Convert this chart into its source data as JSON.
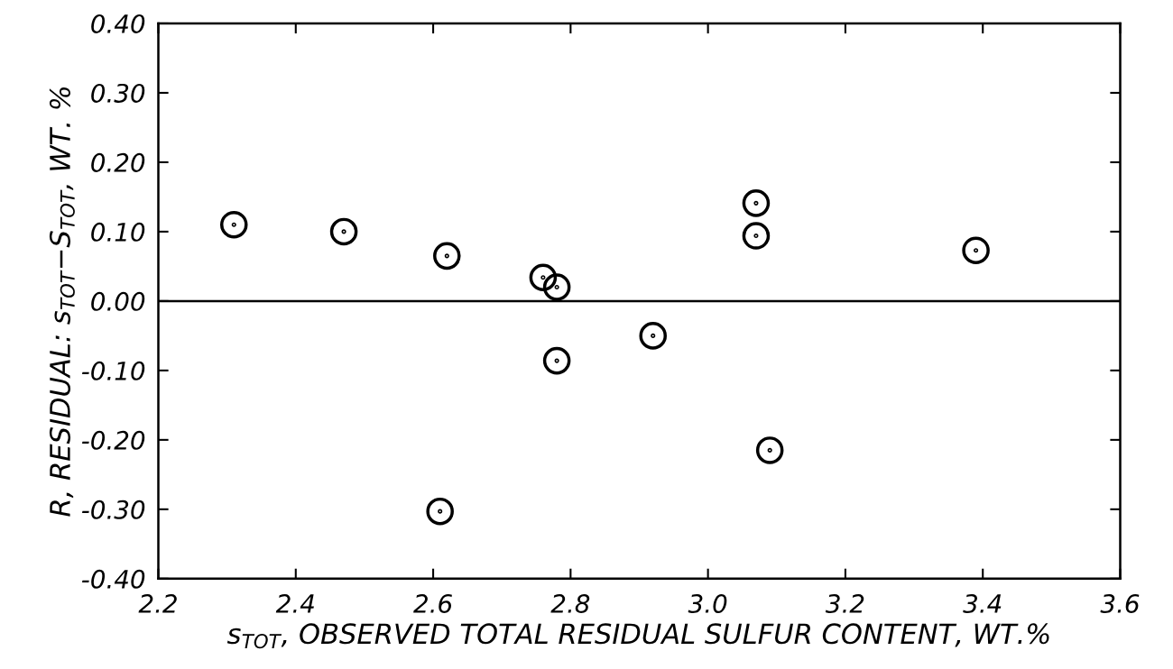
{
  "chart_data": {
    "type": "scatter",
    "xlabel": "s$_{TOT}$, OBSERVED TOTAL RESIDUAL SULFUR CONTENT, WT.%",
    "ylabel": "R, RESIDUAL: s$_{TOT}$−S$_{TOT}$, WT. %",
    "x": [
      2.31,
      2.47,
      2.62,
      2.76,
      2.78,
      2.78,
      2.92,
      3.07,
      3.07,
      3.09,
      3.39,
      2.61
    ],
    "series": [
      {
        "color": "#000000",
        "values": [
          0.11,
          0.1,
          0.065,
          0.034,
          0.02,
          -0.086,
          -0.05,
          0.141,
          0.094,
          -0.215,
          0.073,
          -0.303
        ]
      }
    ],
    "marker": "circle",
    "grid": false,
    "xlim": [
      2.2,
      3.6
    ],
    "xticks": [
      2.2,
      2.4,
      2.6,
      2.8,
      {
        "value": 3.0,
        "label": "3.0"
      },
      3.2,
      3.4,
      3.6
    ],
    "ylim": [
      -0.4,
      0.4
    ],
    "yticks": [
      {
        "value": -0.4,
        "label": "-0.40"
      },
      {
        "value": -0.3,
        "label": "-0.30"
      },
      {
        "value": -0.2,
        "label": "-0.20"
      },
      {
        "value": -0.1,
        "label": "-0.10"
      },
      {
        "value": 0.0,
        "label": "0.00"
      },
      {
        "value": 0.1,
        "label": "0.10"
      },
      {
        "value": 0.2,
        "label": "0.20"
      },
      {
        "value": 0.3,
        "label": "0.30"
      },
      {
        "value": 0.4,
        "label": "0.40"
      }
    ],
    "ref_lines": [
      {
        "axis": "y",
        "value": 0,
        "color": "#000000",
        "line_style": "solid"
      }
    ]
  }
}
